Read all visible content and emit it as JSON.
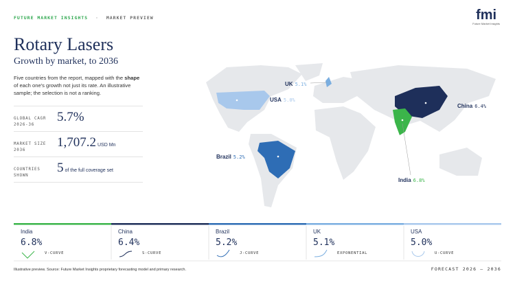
{
  "header": {
    "brand": "FUTURE MARKET INSIGHTS",
    "separator": "·",
    "section": "MARKET PREVIEW",
    "logo": "fmi",
    "logo_caption": "Future Market Insights"
  },
  "title": "Rotary Lasers",
  "subtitle": "Growth by market, to 2036",
  "description": [
    "Five countries from the report, mapped with the ",
    "shape",
    " of each one's growth not just its rate. An illustrative sample; the selection is not a ranking."
  ],
  "stats": [
    {
      "label": "GLOBAL CAGR 2026-36",
      "value": "5.7%",
      "unit": ""
    },
    {
      "label": "MARKET SIZE 2036",
      "value": "1,707.2",
      "unit": "USD Mn"
    },
    {
      "label": "COUNTRIES SHOWN",
      "value": "5",
      "unit": "of the full coverage set"
    }
  ],
  "map_labels": [
    {
      "country": "UK",
      "value": "5.1%"
    },
    {
      "country": "USA",
      "value": "5.0%"
    },
    {
      "country": "China",
      "value": "6.4%"
    },
    {
      "country": "Brazil",
      "value": "5.2%"
    },
    {
      "country": "India",
      "value": "6.8%"
    }
  ],
  "cards": [
    {
      "country": "India",
      "value": "6.8%",
      "curve": "V-CURVE"
    },
    {
      "country": "China",
      "value": "6.4%",
      "curve": "S-CURVE"
    },
    {
      "country": "Brazil",
      "value": "5.2%",
      "curve": "J-CURVE"
    },
    {
      "country": "UK",
      "value": "5.1%",
      "curve": "EXPONENTIAL"
    },
    {
      "country": "USA",
      "value": "5.0%",
      "curve": "U-CURVE"
    }
  ],
  "footer": {
    "source": "Illustrative preview. Source: Future Market Insights proprietary forecasting model and primary research.",
    "forecast": "FORECAST 2026 – 2036"
  }
}
